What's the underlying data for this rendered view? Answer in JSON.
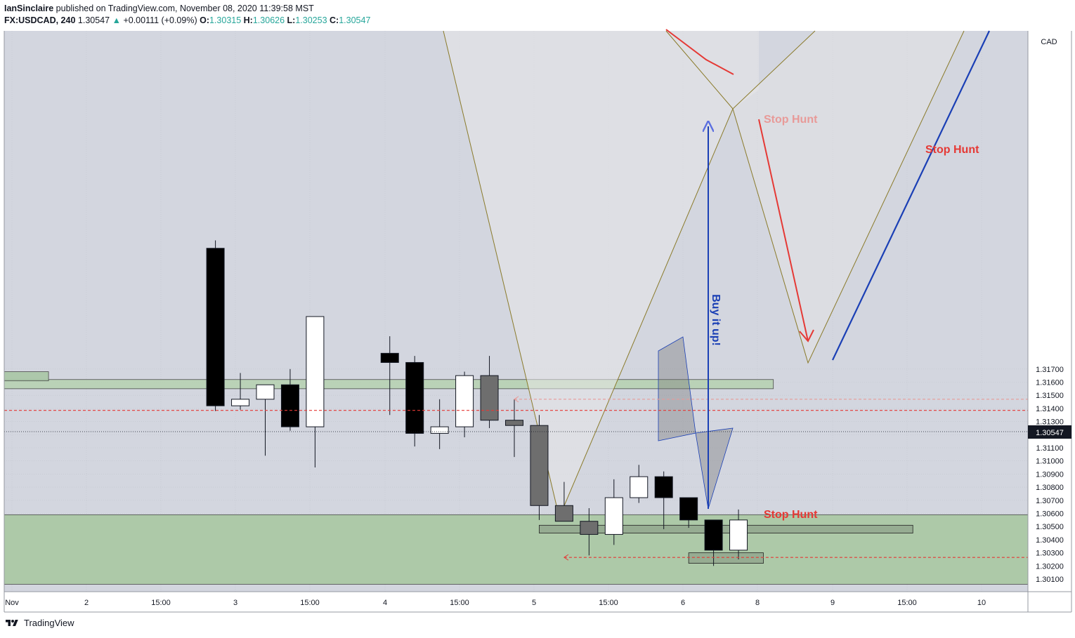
{
  "header": {
    "author": "IanSinclaire",
    "published": "published on TradingView.com, November 08, 2020 11:39:58 MST",
    "symbol": "FX:USDCAD, 240",
    "last": "1.30547",
    "change_arrow": "▲",
    "change": "+0.00111 (+0.09%)",
    "o_label": "O:",
    "o": "1.30315",
    "h_label": "H:",
    "h": "1.30626",
    "l_label": "L:",
    "l": "1.30253",
    "c_label": "C:",
    "c": "1.30547"
  },
  "footer": {
    "brand": "TradingView",
    "logo_icon": "tradingview-logo-icon"
  },
  "colors": {
    "background": "#d3d6df",
    "demand_zone": "#a9c7a5",
    "bull_candle": "#ffffff",
    "bear_candle": "#000000",
    "ghost_candle": "#6e6e6e",
    "stop_hunt_red": "#e53935",
    "buy_blue": "#1a3fb5",
    "pattern_line": "#8a7a2a",
    "price_tag": "#131722"
  },
  "chart_data": {
    "type": "candlestick",
    "currency": "CAD",
    "ylim": [
      1.3006,
      1.318
    ],
    "y_ticks": [
      "1.30100",
      "1.30200",
      "1.30300",
      "1.30400",
      "1.30500",
      "1.30600",
      "1.30700",
      "1.30800",
      "1.30900",
      "1.31000",
      "1.31100",
      "1.31200",
      "1.31300",
      "1.31400",
      "1.31500",
      "1.31600",
      "1.31700"
    ],
    "x_ticks": [
      "Nov",
      "2",
      "15:00",
      "3",
      "15:00",
      "4",
      "15:00",
      "5",
      "15:00",
      "6",
      "8",
      "9",
      "15:00",
      "10"
    ],
    "last_price_label": "1.30547",
    "candles": [
      {
        "t": 8.0,
        "o": 1.3262,
        "h": 1.3268,
        "l": 1.3138,
        "c": 1.3142,
        "kind": "bear"
      },
      {
        "t": 9.0,
        "o": 1.3142,
        "h": 1.3167,
        "l": 1.3139,
        "c": 1.3147,
        "kind": "bull"
      },
      {
        "t": 10.0,
        "o": 1.3147,
        "h": 1.3158,
        "l": 1.3104,
        "c": 1.3158,
        "kind": "bull"
      },
      {
        "t": 11.0,
        "o": 1.3158,
        "h": 1.317,
        "l": 1.3123,
        "c": 1.3126,
        "kind": "bear"
      },
      {
        "t": 12.0,
        "o": 1.3126,
        "h": 1.321,
        "l": 1.3095,
        "c": 1.321,
        "kind": "bull"
      },
      {
        "t": 15.0,
        "o": 1.3182,
        "h": 1.3195,
        "l": 1.3135,
        "c": 1.3175,
        "kind": "bear"
      },
      {
        "t": 16.0,
        "o": 1.3175,
        "h": 1.318,
        "l": 1.3111,
        "c": 1.3121,
        "kind": "bear"
      },
      {
        "t": 17.0,
        "o": 1.3121,
        "h": 1.3147,
        "l": 1.3109,
        "c": 1.3126,
        "kind": "bull"
      },
      {
        "t": 18.0,
        "o": 1.3126,
        "h": 1.3168,
        "l": 1.3118,
        "c": 1.3165,
        "kind": "bull"
      },
      {
        "t": 19.0,
        "o": 1.3165,
        "h": 1.318,
        "l": 1.3125,
        "c": 1.3131,
        "kind": "ghost"
      },
      {
        "t": 20.0,
        "o": 1.3131,
        "h": 1.3147,
        "l": 1.3103,
        "c": 1.3127,
        "kind": "ghost"
      },
      {
        "t": 21.0,
        "o": 1.3127,
        "h": 1.3135,
        "l": 1.3055,
        "c": 1.3066,
        "kind": "ghost"
      },
      {
        "t": 22.0,
        "o": 1.3066,
        "h": 1.3084,
        "l": 1.3054,
        "c": 1.3054,
        "kind": "ghost"
      },
      {
        "t": 23.0,
        "o": 1.3054,
        "h": 1.3064,
        "l": 1.3028,
        "c": 1.3044,
        "kind": "ghost"
      },
      {
        "t": 24.0,
        "o": 1.3044,
        "h": 1.3086,
        "l": 1.3036,
        "c": 1.3072,
        "kind": "bull"
      },
      {
        "t": 25.0,
        "o": 1.3072,
        "h": 1.3097,
        "l": 1.3068,
        "c": 1.3088,
        "kind": "bull"
      },
      {
        "t": 26.0,
        "o": 1.3088,
        "h": 1.3092,
        "l": 1.3048,
        "c": 1.3072,
        "kind": "bear"
      },
      {
        "t": 27.0,
        "o": 1.3072,
        "h": 1.3072,
        "l": 1.3049,
        "c": 1.3055,
        "kind": "bear"
      },
      {
        "t": 28.0,
        "o": 1.3055,
        "h": 1.3055,
        "l": 1.302,
        "c": 1.3032,
        "kind": "bear"
      },
      {
        "t": 29.0,
        "o": 1.3032,
        "h": 1.3063,
        "l": 1.3025,
        "c": 1.3055,
        "kind": "bull"
      }
    ],
    "zones": [
      {
        "name": "supply-zone",
        "x0": 0.0,
        "x1": 30.4,
        "y0": 1.3155,
        "y1": 1.3162
      },
      {
        "name": "supply-zone-small",
        "x0": 0.0,
        "x1": 1.3,
        "y0": 1.3161,
        "y1": 1.3168
      },
      {
        "name": "demand-zone",
        "x0": 0.0,
        "x1": 41.1,
        "y0": 1.3006,
        "y1": 1.3059
      },
      {
        "name": "mid-range-box",
        "x0": 21.0,
        "x1": 36.0,
        "y0": 1.3045,
        "y1": 1.3051
      },
      {
        "name": "low-box",
        "x0": 27.0,
        "x1": 30.0,
        "y0": 1.3022,
        "y1": 1.303
      }
    ],
    "lines": [
      {
        "name": "stop-hunt-low-line",
        "y": 1.30265,
        "x0": 22.0,
        "x1": 41.1,
        "color": "red",
        "dashed": true
      },
      {
        "name": "resistance-line",
        "y": 1.31385,
        "x0": 0.0,
        "x1": 41.1,
        "color": "red",
        "dashed": true
      },
      {
        "name": "stop-hunt-high-line",
        "y": 1.3147,
        "x0": 20.0,
        "x1": 41.1,
        "color": "red",
        "dashed": true,
        "faded": true
      }
    ],
    "annotations": [
      {
        "text": "Stop Hunt",
        "x": 30.2,
        "y": 1.315,
        "color": "#e89a98"
      },
      {
        "text": "Stop Hunt",
        "x": 37.0,
        "y": 1.3141,
        "color": "#e53935"
      },
      {
        "text": "Stop Hunt",
        "x": 30.2,
        "y": 1.3029,
        "color": "#e53935"
      },
      {
        "text": "Buy it up!",
        "x": 28.1,
        "y": 1.31,
        "color": "#1a3fb5",
        "rotated": true
      }
    ]
  }
}
